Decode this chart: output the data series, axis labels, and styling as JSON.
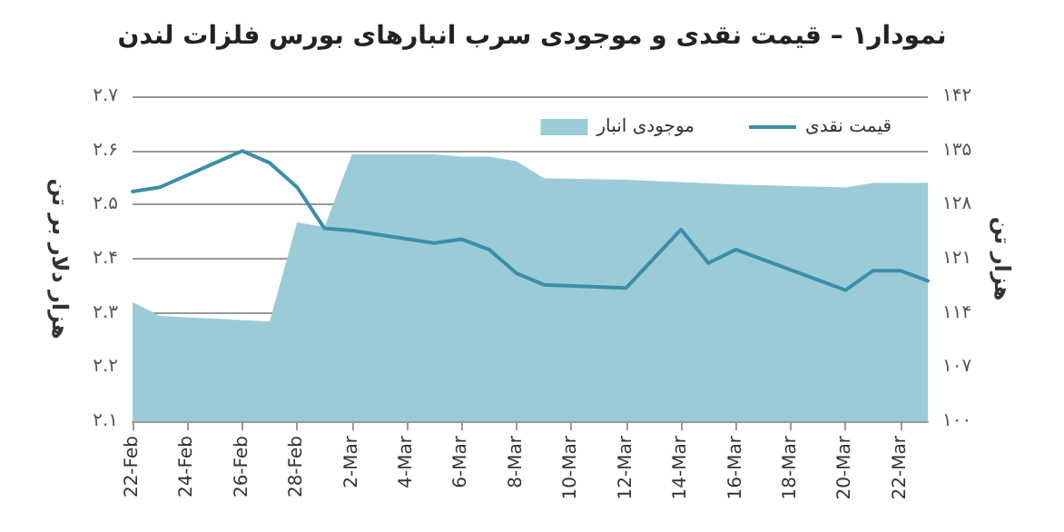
{
  "chart_data": {
    "type": "line",
    "title": "نمودار۱ – قیمت نقدی و موجودی سرب انبارهای بورس فلزات لندن",
    "ylabel": "هزار دلار بر تن",
    "y2label": "هزار تن",
    "series": [
      {
        "name": "موجودی انبار",
        "type": "area",
        "axis": "y2",
        "color": "#9ccbd8",
        "x": [
          "--02-22",
          "--02-23",
          "--02-27",
          "--02-28",
          "--03-01",
          "--03-02",
          "--03-05",
          "--03-06",
          "--03-07",
          "--03-08",
          "--03-09",
          "--03-12",
          "--03-16",
          "--03-20",
          "--03-21",
          "--03-23"
        ],
        "values": [
          115.4,
          113.6,
          112.9,
          125.7,
          125.1,
          134.5,
          134.5,
          134.2,
          134.2,
          133.6,
          131.4,
          131.2,
          130.6,
          130.2,
          130.8,
          130.8
        ]
      },
      {
        "name": "قیمت نقدی",
        "color": "#3a8fa8",
        "x": [
          "--02-22",
          "--02-23",
          "--02-26",
          "--02-27",
          "--02-28",
          "--03-01",
          "--03-02",
          "--03-05",
          "--03-06",
          "--03-07",
          "--03-08",
          "--03-09",
          "--03-12",
          "--03-14",
          "--03-15",
          "--03-16",
          "--03-20",
          "--03-21",
          "--03-22",
          "--03-23"
        ],
        "values": [
          2.524,
          2.532,
          2.599,
          2.577,
          2.532,
          2.456,
          2.452,
          2.429,
          2.436,
          2.417,
          2.373,
          2.352,
          2.346,
          2.454,
          2.392,
          2.417,
          2.342,
          2.378,
          2.378,
          2.359
        ]
      }
    ],
    "xlim": [
      "--02-22",
      "--03-23"
    ],
    "xticks": [
      {
        "value": "--02-22",
        "label": "22-Feb"
      },
      {
        "value": "--02-24",
        "label": "24-Feb"
      },
      {
        "value": "--02-26",
        "label": "26-Feb"
      },
      {
        "value": "--02-28",
        "label": "28-Feb"
      },
      {
        "value": "--03-02",
        "label": "2-Mar"
      },
      {
        "value": "--03-04",
        "label": "4-Mar"
      },
      {
        "value": "--03-06",
        "label": "6-Mar"
      },
      {
        "value": "--03-08",
        "label": "8-Mar"
      },
      {
        "value": "--03-10",
        "label": "10-Mar"
      },
      {
        "value": "--03-12",
        "label": "12-Mar"
      },
      {
        "value": "--03-14",
        "label": "14-Mar"
      },
      {
        "value": "--03-16",
        "label": "16-Mar"
      },
      {
        "value": "--03-18",
        "label": "18-Mar"
      },
      {
        "value": "--03-20",
        "label": "20-Mar"
      },
      {
        "value": "--03-22",
        "label": "22-Mar"
      }
    ],
    "ylim": [
      2.1,
      2.7
    ],
    "yticks": [
      {
        "value": 2.1,
        "label": "۲.۱"
      },
      {
        "value": 2.2,
        "label": "۲.۲"
      },
      {
        "value": 2.3,
        "label": "۲.۳"
      },
      {
        "value": 2.4,
        "label": "۲.۴"
      },
      {
        "value": 2.5,
        "label": "۲.۵"
      },
      {
        "value": 2.6,
        "label": "۲.۶"
      },
      {
        "value": 2.7,
        "label": "۲.۷"
      }
    ],
    "y2lim": [
      100,
      142
    ],
    "y2ticks": [
      {
        "value": 100,
        "label": "۱۰۰"
      },
      {
        "value": 107,
        "label": "۱۰۷"
      },
      {
        "value": 114,
        "label": "۱۱۴"
      },
      {
        "value": 121,
        "label": "۱۲۱"
      },
      {
        "value": 128,
        "label": "۱۲۸"
      },
      {
        "value": 135,
        "label": "۱۳۵"
      },
      {
        "value": 142,
        "label": "۱۴۲"
      }
    ],
    "grid": "y",
    "legend": "top right",
    "marker": "none",
    "line_style": "solid"
  }
}
